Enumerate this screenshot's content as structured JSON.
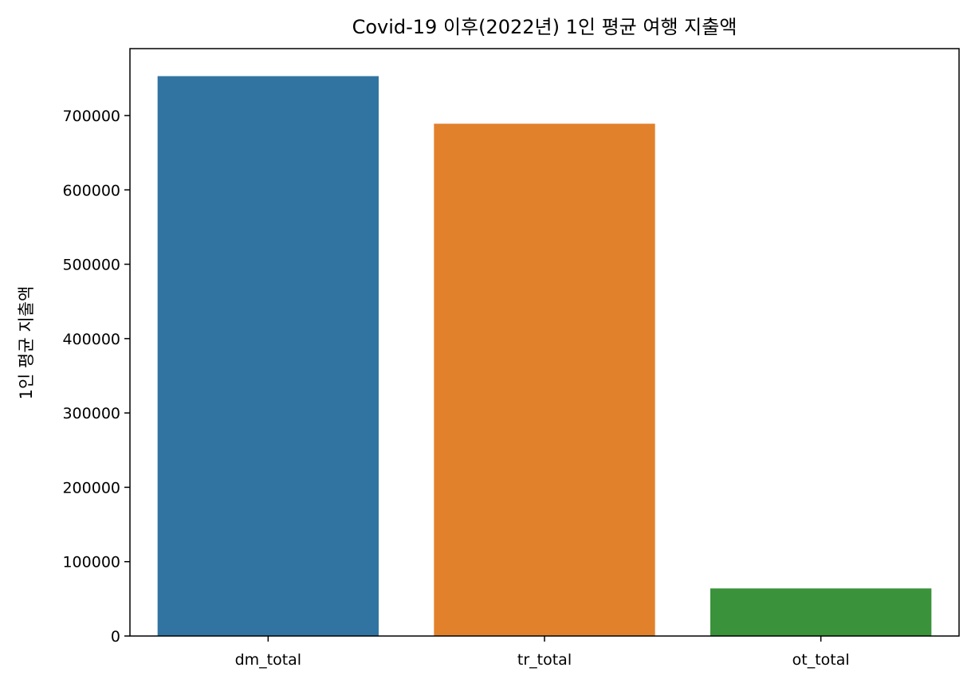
{
  "chart_data": {
    "type": "bar",
    "title": "Covid-19 이후(2022년) 1인 평균 여행 지출액",
    "xlabel": "",
    "ylabel": "1인 평균 지출액",
    "categories": [
      "dm_total",
      "tr_total",
      "ot_total"
    ],
    "values": [
      753000,
      689000,
      64000
    ],
    "colors": [
      "#3274a1",
      "#e1812c",
      "#3a923a"
    ],
    "ylim": [
      0,
      790000
    ],
    "yticks": [
      0,
      100000,
      200000,
      300000,
      400000,
      500000,
      600000,
      700000
    ],
    "ytick_labels": [
      "0",
      "100000",
      "200000",
      "300000",
      "400000",
      "500000",
      "600000",
      "700000"
    ],
    "grid": false,
    "legend": null
  }
}
